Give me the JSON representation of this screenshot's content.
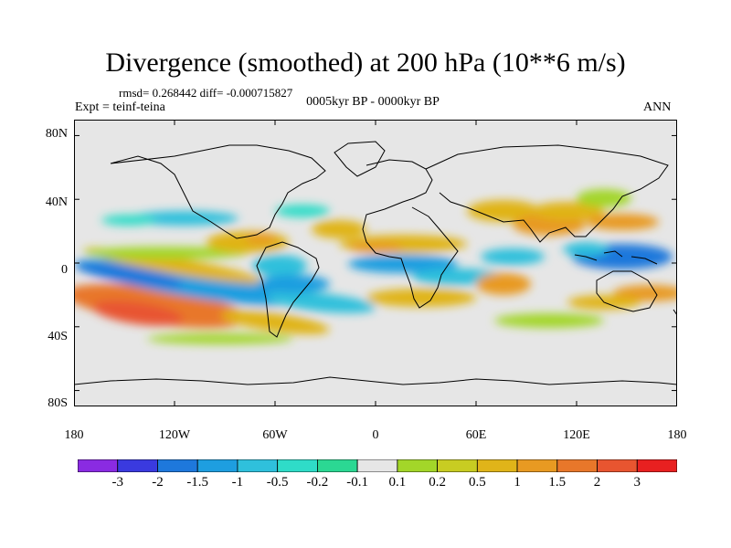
{
  "title": "Divergence (smoothed) at 200 hPa (10**6 m/s)",
  "stats": "rmsd= 0.268442  diff= -0.000715827",
  "experiment": "Expt = teinf-teina",
  "period": "0005kyr BP - 0000kyr BP",
  "season": "ANN",
  "lat_ticks": [
    "80N",
    "40N",
    "0",
    "40S",
    "80S"
  ],
  "lon_ticks": [
    "180",
    "120W",
    "60W",
    "0",
    "60E",
    "120E",
    "180"
  ],
  "colorbar": {
    "labels": [
      "-3",
      "-2",
      "-1.5",
      "-1",
      "-0.5",
      "-0.2",
      "-0.1",
      "0.1",
      "0.2",
      "0.5",
      "1",
      "1.5",
      "2",
      "3"
    ],
    "colors": [
      "#8a2be2",
      "#3a3adf",
      "#1e78dc",
      "#1e9ee0",
      "#2fc0dc",
      "#2fdcc8",
      "#2bd893",
      "#e6e6e6",
      "#a3d629",
      "#c8cc22",
      "#e0b419",
      "#e89a22",
      "#e8772a",
      "#e85530",
      "#e82020"
    ]
  },
  "map": {
    "background": "#e6e6e6",
    "xlim": [
      -180,
      180
    ],
    "ylim": [
      -90,
      90
    ]
  }
}
